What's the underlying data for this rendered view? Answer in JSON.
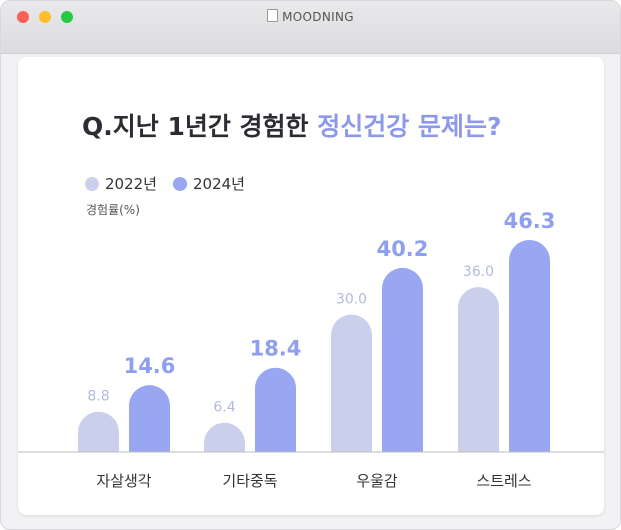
{
  "window": {
    "title": "MOODNING"
  },
  "heading": {
    "part1": "Q.지난 1년간 경험한 ",
    "part2": "정신건강 문제는?"
  },
  "colors": {
    "series_2022": "#cacfec",
    "series_2024": "#99a7f3",
    "label_2022": "#b3bae0",
    "label_2024": "#8e9ef0",
    "accent": "#8c98ec"
  },
  "chart_data": {
    "type": "bar",
    "ylabel": "경험률(%)",
    "categories": [
      "자살생각",
      "기타중독",
      "우울감",
      "스트레스"
    ],
    "series": [
      {
        "name": "2022년",
        "values": [
          8.8,
          6.4,
          30.0,
          36.0
        ],
        "labels": [
          "8.8",
          "6.4",
          "30.0",
          "36.0"
        ]
      },
      {
        "name": "2024년",
        "values": [
          14.6,
          18.4,
          40.2,
          46.3
        ],
        "labels": [
          "14.6",
          "18.4",
          "40.2",
          "46.3"
        ]
      }
    ],
    "ylim": [
      0,
      50
    ],
    "grid": false,
    "legend": "top-left"
  }
}
